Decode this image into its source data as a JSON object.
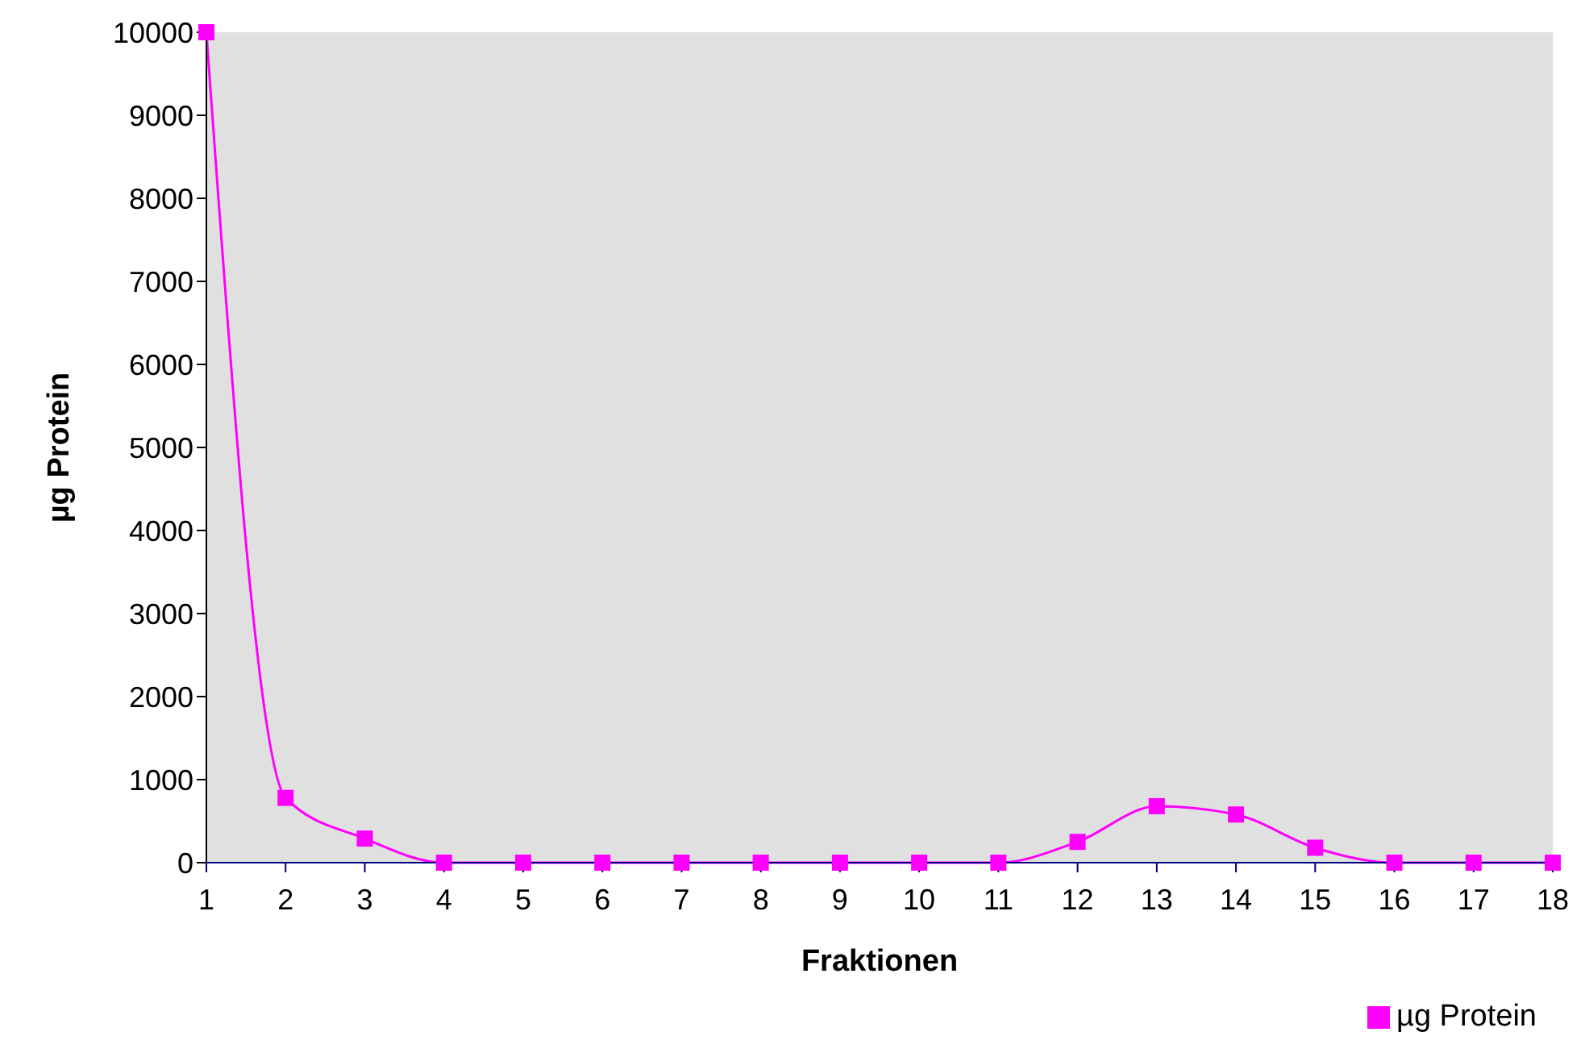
{
  "chart_data": {
    "type": "line",
    "xlabel": "Fraktionen",
    "ylabel": "µg Protein",
    "x": [
      1,
      2,
      3,
      4,
      5,
      6,
      7,
      8,
      9,
      10,
      11,
      12,
      13,
      14,
      15,
      16,
      17,
      18
    ],
    "xlim": [
      1,
      18
    ],
    "xticks": [
      1,
      2,
      3,
      4,
      5,
      6,
      7,
      8,
      9,
      10,
      11,
      12,
      13,
      14,
      15,
      16,
      17,
      18
    ],
    "series": [
      {
        "name": "µg Protein",
        "color": "#ff00ff",
        "values": [
          10000,
          780,
          290,
          0,
          0,
          0,
          0,
          0,
          0,
          0,
          0,
          250,
          680,
          580,
          180,
          0,
          0,
          0
        ]
      }
    ],
    "ylim": [
      0,
      10000
    ],
    "yticks": [
      0,
      1000,
      2000,
      3000,
      4000,
      5000,
      6000,
      7000,
      8000,
      9000,
      10000
    ],
    "grid": false,
    "legend": "bottom right",
    "marker": "square"
  }
}
